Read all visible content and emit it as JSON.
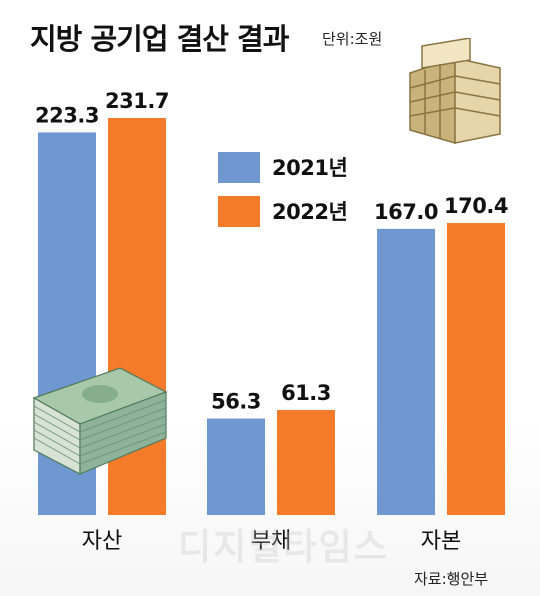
{
  "title": "지방 공기업 결산 결과",
  "unit": "단위:조원",
  "source": "자료:행안부",
  "watermark": "디지털타임스",
  "colors": {
    "series_2021": "#6f97d0",
    "series_2022": "#f47b2a",
    "building": "#c9b37a",
    "money": "#7fa889"
  },
  "legend": [
    "2021년",
    "2022년"
  ],
  "chart_data": {
    "type": "bar",
    "title": "지방 공기업 결산 결과",
    "xlabel": "",
    "ylabel": "",
    "categories": [
      "자산",
      "부채",
      "자본"
    ],
    "series": [
      {
        "name": "2021년",
        "values": [
          223.3,
          56.3,
          167.0
        ]
      },
      {
        "name": "2022년",
        "values": [
          231.7,
          61.3,
          170.4
        ]
      }
    ],
    "data_labels": [
      [
        "223.3",
        "56.3",
        "167.0"
      ],
      [
        "231.7",
        "61.3",
        "170.4"
      ]
    ],
    "ylim": [
      0,
      231.7
    ],
    "grid": false,
    "legend_position": "center"
  }
}
